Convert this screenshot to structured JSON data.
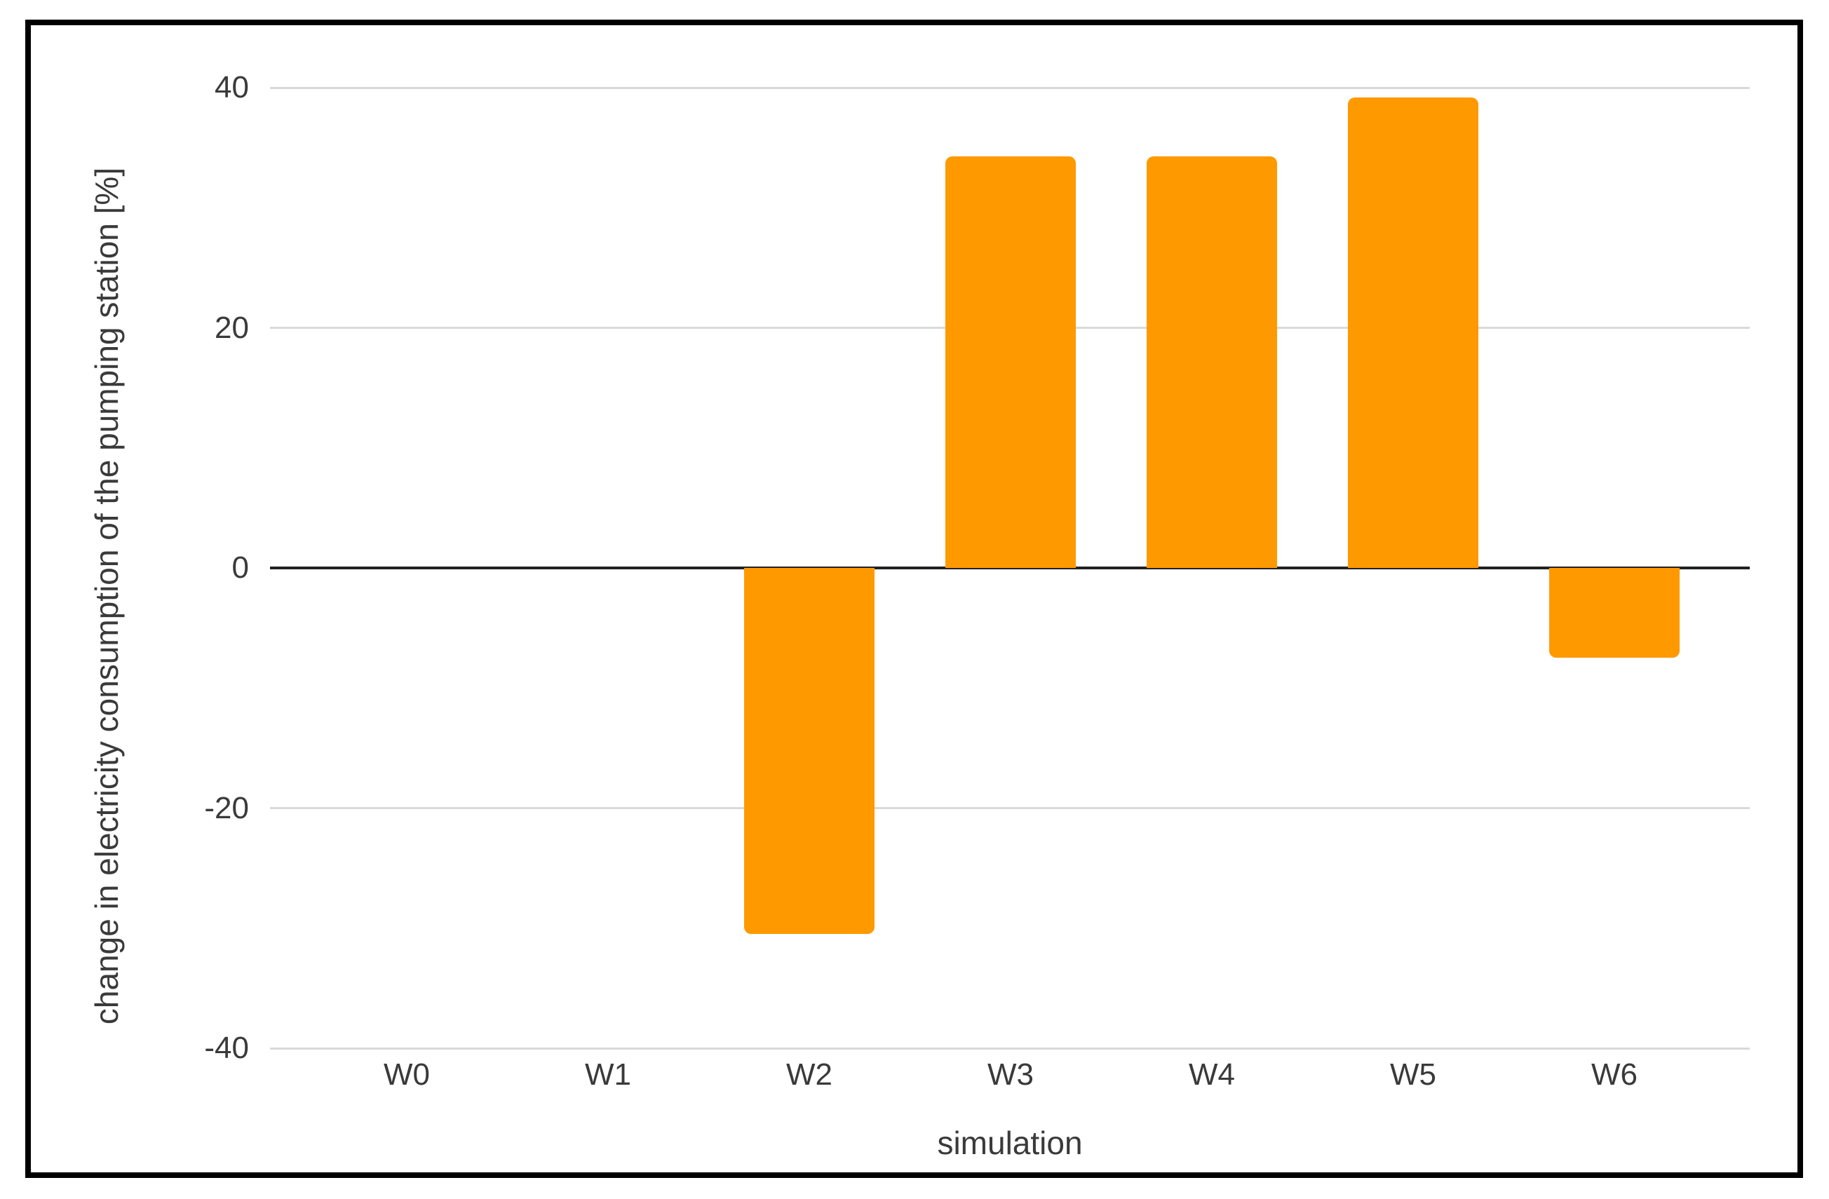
{
  "chart_data": {
    "type": "bar",
    "xlabel": "simulation",
    "ylabel": "change in electricity consumption of the pumping station [%]",
    "categories": [
      "W0",
      "W1",
      "W2",
      "W3",
      "W4",
      "W5",
      "W6"
    ],
    "values": [
      0,
      0,
      -30.5,
      34.3,
      34.3,
      39.2,
      -7.5
    ],
    "yticks": [
      40,
      20,
      0,
      -20,
      -40
    ],
    "ylim": [
      -40,
      40
    ],
    "grid": true,
    "legend": false
  },
  "colors": {
    "bar": "#FF9900",
    "gridline": "#D9D9D9",
    "zero_line": "#212121",
    "text": "#3A3A3A",
    "frame": "#000000",
    "background": "#FFFFFF"
  }
}
